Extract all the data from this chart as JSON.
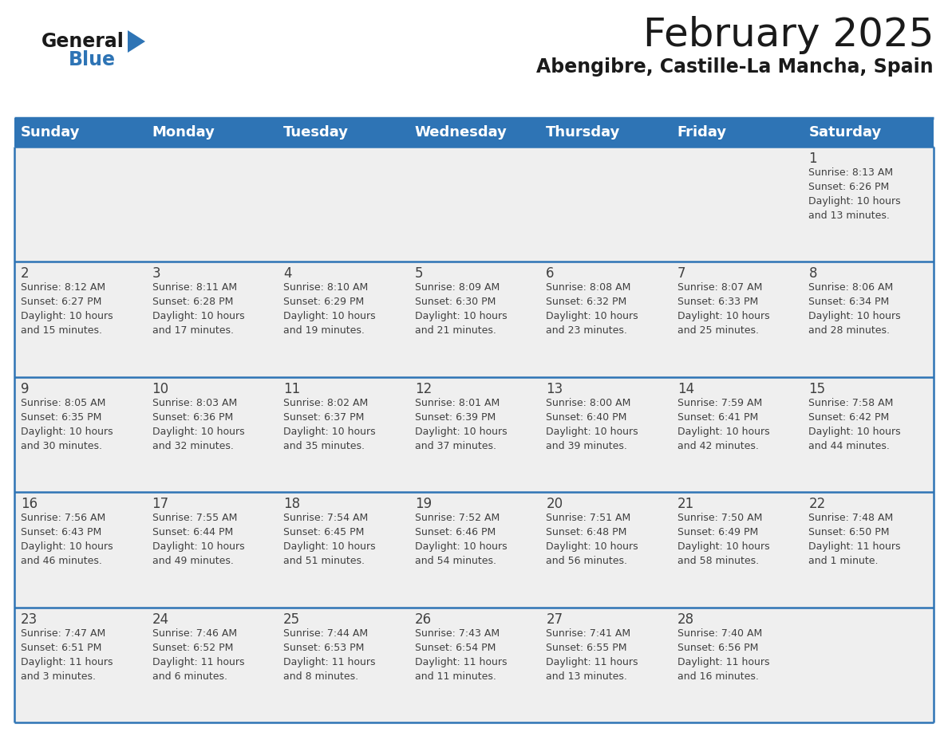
{
  "title": "February 2025",
  "subtitle": "Abengibre, Castille-La Mancha, Spain",
  "header_color": "#2E74B5",
  "header_text_color": "#FFFFFF",
  "background_color": "#FFFFFF",
  "cell_bg_color": "#EFEFEF",
  "border_color": "#2E74B5",
  "text_color": "#404040",
  "days_of_week": [
    "Sunday",
    "Monday",
    "Tuesday",
    "Wednesday",
    "Thursday",
    "Friday",
    "Saturday"
  ],
  "weeks": [
    [
      {
        "day": "",
        "sunrise": "",
        "sunset": "",
        "daylight": ""
      },
      {
        "day": "",
        "sunrise": "",
        "sunset": "",
        "daylight": ""
      },
      {
        "day": "",
        "sunrise": "",
        "sunset": "",
        "daylight": ""
      },
      {
        "day": "",
        "sunrise": "",
        "sunset": "",
        "daylight": ""
      },
      {
        "day": "",
        "sunrise": "",
        "sunset": "",
        "daylight": ""
      },
      {
        "day": "",
        "sunrise": "",
        "sunset": "",
        "daylight": ""
      },
      {
        "day": "1",
        "sunrise": "8:13 AM",
        "sunset": "6:26 PM",
        "daylight": "10 hours\nand 13 minutes."
      }
    ],
    [
      {
        "day": "2",
        "sunrise": "8:12 AM",
        "sunset": "6:27 PM",
        "daylight": "10 hours\nand 15 minutes."
      },
      {
        "day": "3",
        "sunrise": "8:11 AM",
        "sunset": "6:28 PM",
        "daylight": "10 hours\nand 17 minutes."
      },
      {
        "day": "4",
        "sunrise": "8:10 AM",
        "sunset": "6:29 PM",
        "daylight": "10 hours\nand 19 minutes."
      },
      {
        "day": "5",
        "sunrise": "8:09 AM",
        "sunset": "6:30 PM",
        "daylight": "10 hours\nand 21 minutes."
      },
      {
        "day": "6",
        "sunrise": "8:08 AM",
        "sunset": "6:32 PM",
        "daylight": "10 hours\nand 23 minutes."
      },
      {
        "day": "7",
        "sunrise": "8:07 AM",
        "sunset": "6:33 PM",
        "daylight": "10 hours\nand 25 minutes."
      },
      {
        "day": "8",
        "sunrise": "8:06 AM",
        "sunset": "6:34 PM",
        "daylight": "10 hours\nand 28 minutes."
      }
    ],
    [
      {
        "day": "9",
        "sunrise": "8:05 AM",
        "sunset": "6:35 PM",
        "daylight": "10 hours\nand 30 minutes."
      },
      {
        "day": "10",
        "sunrise": "8:03 AM",
        "sunset": "6:36 PM",
        "daylight": "10 hours\nand 32 minutes."
      },
      {
        "day": "11",
        "sunrise": "8:02 AM",
        "sunset": "6:37 PM",
        "daylight": "10 hours\nand 35 minutes."
      },
      {
        "day": "12",
        "sunrise": "8:01 AM",
        "sunset": "6:39 PM",
        "daylight": "10 hours\nand 37 minutes."
      },
      {
        "day": "13",
        "sunrise": "8:00 AM",
        "sunset": "6:40 PM",
        "daylight": "10 hours\nand 39 minutes."
      },
      {
        "day": "14",
        "sunrise": "7:59 AM",
        "sunset": "6:41 PM",
        "daylight": "10 hours\nand 42 minutes."
      },
      {
        "day": "15",
        "sunrise": "7:58 AM",
        "sunset": "6:42 PM",
        "daylight": "10 hours\nand 44 minutes."
      }
    ],
    [
      {
        "day": "16",
        "sunrise": "7:56 AM",
        "sunset": "6:43 PM",
        "daylight": "10 hours\nand 46 minutes."
      },
      {
        "day": "17",
        "sunrise": "7:55 AM",
        "sunset": "6:44 PM",
        "daylight": "10 hours\nand 49 minutes."
      },
      {
        "day": "18",
        "sunrise": "7:54 AM",
        "sunset": "6:45 PM",
        "daylight": "10 hours\nand 51 minutes."
      },
      {
        "day": "19",
        "sunrise": "7:52 AM",
        "sunset": "6:46 PM",
        "daylight": "10 hours\nand 54 minutes."
      },
      {
        "day": "20",
        "sunrise": "7:51 AM",
        "sunset": "6:48 PM",
        "daylight": "10 hours\nand 56 minutes."
      },
      {
        "day": "21",
        "sunrise": "7:50 AM",
        "sunset": "6:49 PM",
        "daylight": "10 hours\nand 58 minutes."
      },
      {
        "day": "22",
        "sunrise": "7:48 AM",
        "sunset": "6:50 PM",
        "daylight": "11 hours\nand 1 minute."
      }
    ],
    [
      {
        "day": "23",
        "sunrise": "7:47 AM",
        "sunset": "6:51 PM",
        "daylight": "11 hours\nand 3 minutes."
      },
      {
        "day": "24",
        "sunrise": "7:46 AM",
        "sunset": "6:52 PM",
        "daylight": "11 hours\nand 6 minutes."
      },
      {
        "day": "25",
        "sunrise": "7:44 AM",
        "sunset": "6:53 PM",
        "daylight": "11 hours\nand 8 minutes."
      },
      {
        "day": "26",
        "sunrise": "7:43 AM",
        "sunset": "6:54 PM",
        "daylight": "11 hours\nand 11 minutes."
      },
      {
        "day": "27",
        "sunrise": "7:41 AM",
        "sunset": "6:55 PM",
        "daylight": "11 hours\nand 13 minutes."
      },
      {
        "day": "28",
        "sunrise": "7:40 AM",
        "sunset": "6:56 PM",
        "daylight": "11 hours\nand 16 minutes."
      },
      {
        "day": "",
        "sunrise": "",
        "sunset": "",
        "daylight": ""
      }
    ]
  ],
  "title_fontsize": 36,
  "subtitle_fontsize": 17,
  "cell_text_fontsize": 9,
  "day_num_fontsize": 12,
  "header_fontsize": 13,
  "logo_general_fontsize": 17,
  "logo_blue_fontsize": 17
}
